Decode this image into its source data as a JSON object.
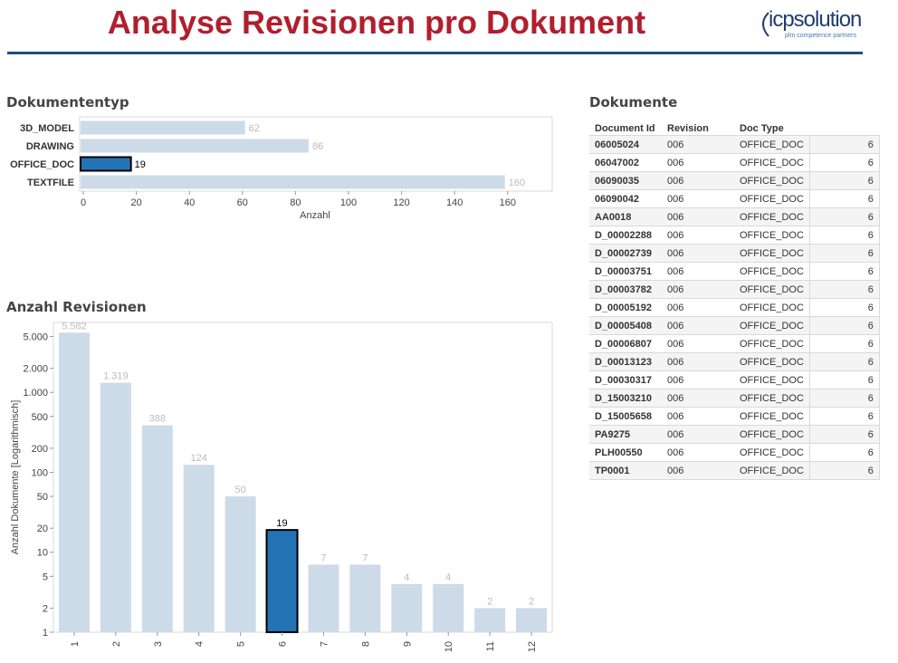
{
  "header": {
    "title": "Analyse Revisionen pro Dokument",
    "logo_main": "icpsolution",
    "logo_sub": "plm competence partners"
  },
  "colors": {
    "title": "#b01f2e",
    "rule": "#1f4e79",
    "bar_light": "#cddbe8",
    "bar_highlight": "#2474b5"
  },
  "doctype_section": {
    "title": "Dokumententyp"
  },
  "revisions_section": {
    "title": "Anzahl Revisionen"
  },
  "documents_section": {
    "title": "Dokumente"
  },
  "chart_data": [
    {
      "type": "bar",
      "orientation": "horizontal",
      "categories": [
        "3D_MODEL",
        "DRAWING",
        "OFFICE_DOC",
        "TEXTFILE"
      ],
      "values": [
        62,
        86,
        19,
        160
      ],
      "highlight": "OFFICE_DOC",
      "xlabel": "Anzahl",
      "xlim": [
        0,
        180
      ],
      "xticks": [
        0,
        20,
        40,
        60,
        80,
        100,
        120,
        140,
        160
      ]
    },
    {
      "type": "bar",
      "categories": [
        "1",
        "2",
        "3",
        "4",
        "5",
        "6",
        "7",
        "8",
        "9",
        "10",
        "11",
        "12"
      ],
      "values": [
        5582,
        1319,
        388,
        124,
        50,
        19,
        7,
        7,
        4,
        4,
        2,
        2
      ],
      "value_labels": [
        "5.582",
        "1.319",
        "388",
        "124",
        "50",
        "19",
        "7",
        "7",
        "4",
        "4",
        "2",
        "2"
      ],
      "highlight": "6",
      "ylabel": "Anzahl Dokumente [Logarithmisch]",
      "yscale": "log",
      "ylim": [
        1,
        7500
      ],
      "yticks": [
        1,
        2,
        5,
        10,
        20,
        50,
        100,
        200,
        500,
        1000,
        2000,
        5000
      ],
      "ytick_labels": [
        "1",
        "2",
        "5",
        "10",
        "20",
        "50",
        "100",
        "200",
        "500",
        "1.000",
        "2.000",
        "5.000"
      ]
    }
  ],
  "documents_table": {
    "headers": [
      "Document Id",
      "Revision",
      "Doc Type"
    ],
    "rows": [
      [
        "06005024",
        "006",
        "OFFICE_DOC",
        "6"
      ],
      [
        "06047002",
        "006",
        "OFFICE_DOC",
        "6"
      ],
      [
        "06090035",
        "006",
        "OFFICE_DOC",
        "6"
      ],
      [
        "06090042",
        "006",
        "OFFICE_DOC",
        "6"
      ],
      [
        "AA0018",
        "006",
        "OFFICE_DOC",
        "6"
      ],
      [
        "D_00002288",
        "006",
        "OFFICE_DOC",
        "6"
      ],
      [
        "D_00002739",
        "006",
        "OFFICE_DOC",
        "6"
      ],
      [
        "D_00003751",
        "006",
        "OFFICE_DOC",
        "6"
      ],
      [
        "D_00003782",
        "006",
        "OFFICE_DOC",
        "6"
      ],
      [
        "D_00005192",
        "006",
        "OFFICE_DOC",
        "6"
      ],
      [
        "D_00005408",
        "006",
        "OFFICE_DOC",
        "6"
      ],
      [
        "D_00006807",
        "006",
        "OFFICE_DOC",
        "6"
      ],
      [
        "D_00013123",
        "006",
        "OFFICE_DOC",
        "6"
      ],
      [
        "D_00030317",
        "006",
        "OFFICE_DOC",
        "6"
      ],
      [
        "D_15003210",
        "006",
        "OFFICE_DOC",
        "6"
      ],
      [
        "D_15005658",
        "006",
        "OFFICE_DOC",
        "6"
      ],
      [
        "PA9275",
        "006",
        "OFFICE_DOC",
        "6"
      ],
      [
        "PLH00550",
        "006",
        "OFFICE_DOC",
        "6"
      ],
      [
        "TP0001",
        "006",
        "OFFICE_DOC",
        "6"
      ]
    ]
  }
}
